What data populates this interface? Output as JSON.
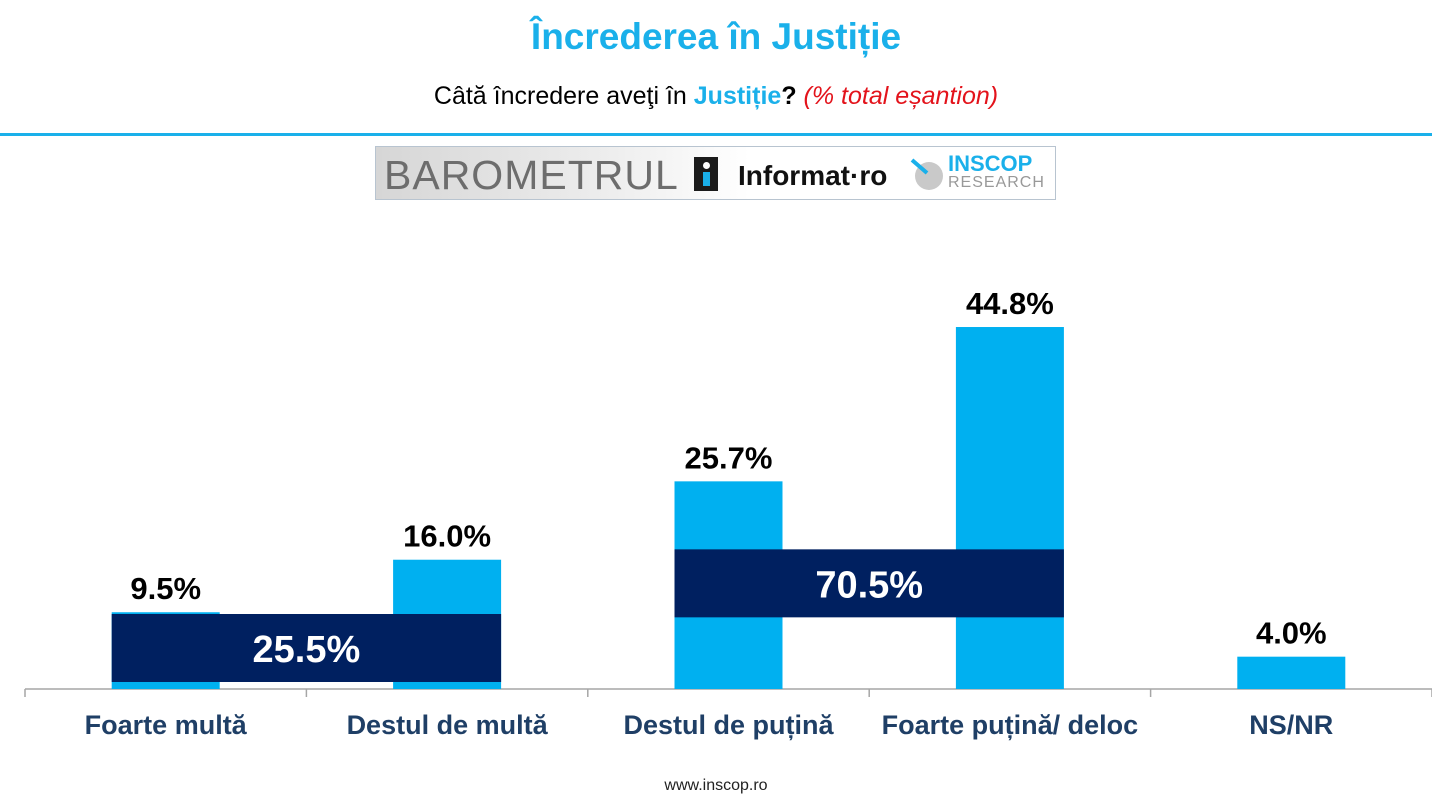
{
  "title": "Încrederea în Justiție",
  "subtitle": {
    "prefix": "Câtă încredere aveţi în ",
    "highlight": "Justiție",
    "question": "?",
    "note": "(% total eșantion)"
  },
  "logos": {
    "barometru": "BAROMETRUL",
    "informat": "Informat·ro",
    "inscop": "INSCOP",
    "research": "RESEARCH"
  },
  "colors": {
    "bar": "#00b0f0",
    "group_band": "#002060",
    "accent": "#1ab0ea",
    "category_text": "#1f3f66"
  },
  "chart_data": {
    "type": "bar",
    "categories": [
      "Foarte multă",
      "Destul de multă",
      "Destul de puțină",
      "Foarte puțină/ deloc",
      "NS/NR"
    ],
    "values": [
      9.5,
      16.0,
      25.7,
      44.8,
      4.0
    ],
    "value_labels": [
      "9.5%",
      "16.0%",
      "25.7%",
      "44.8%",
      "4.0%"
    ],
    "groups": [
      {
        "label": "25.5%",
        "value": 25.5,
        "from": 0,
        "to": 1
      },
      {
        "label": "70.5%",
        "value": 70.5,
        "from": 2,
        "to": 3
      }
    ],
    "ylim": [
      0,
      50
    ]
  },
  "footer": "www.inscop.ro"
}
